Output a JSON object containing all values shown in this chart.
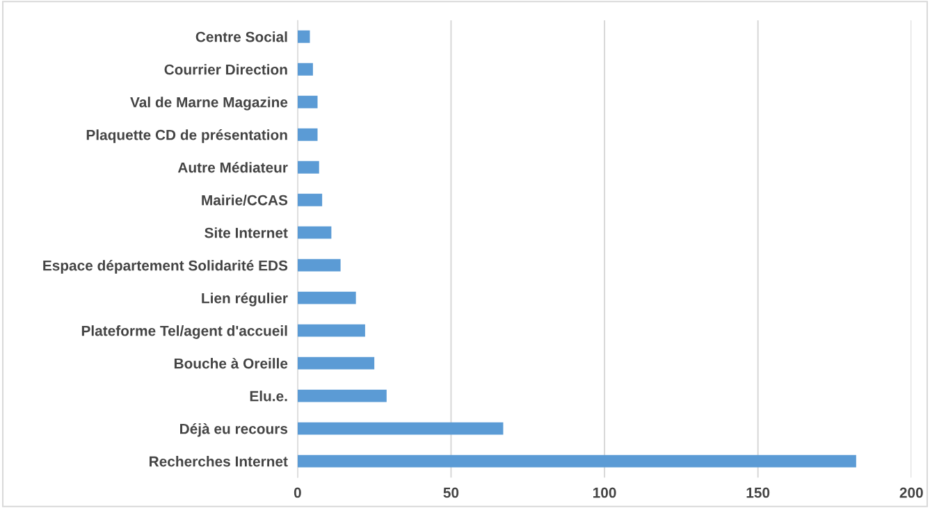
{
  "chart_data": {
    "type": "bar",
    "orientation": "horizontal",
    "categories": [
      "Centre Social",
      "Courrier Direction",
      "Val de Marne Magazine",
      "Plaquette CD de présentation",
      "Autre Médiateur",
      "Mairie/CCAS",
      "Site Internet",
      "Espace département Solidarité EDS",
      "Lien régulier",
      "Plateforme Tel/agent d'accueil",
      "Bouche à Oreille",
      "Elu.e.",
      "Déjà eu recours",
      "Recherches Internet"
    ],
    "values": [
      4,
      5,
      6.5,
      6.5,
      7,
      8,
      11,
      14,
      19,
      22,
      25,
      29,
      67,
      182
    ],
    "color": "#5b9bd5",
    "xlim": [
      0,
      200
    ],
    "xticks": [
      0,
      50,
      100,
      150,
      200
    ],
    "grid": "x"
  }
}
